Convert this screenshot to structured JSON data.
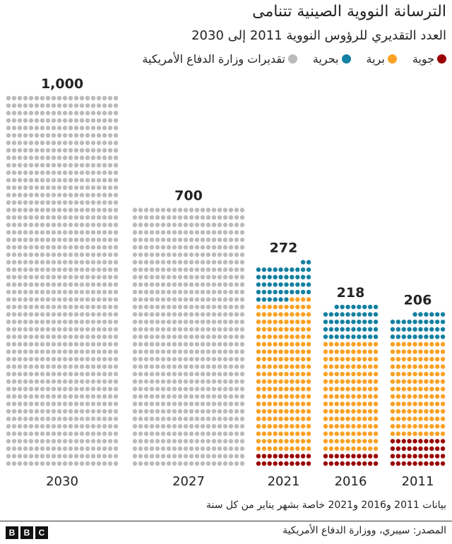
{
  "title": "الترسانة النووية الصينية تتنامى",
  "subtitle": "العدد التقديري للرؤوس النووية 2011 إلى 2030",
  "legend": [
    {
      "label": "جوية",
      "color": "#990000"
    },
    {
      "label": "برية",
      "color": "#fba124"
    },
    {
      "label": "بحرية",
      "color": "#1380a1"
    },
    {
      "label": "تقديرات وزارة الدفاع الأمريكية",
      "color": "#bbbbbb"
    }
  ],
  "chart_data": {
    "type": "waffle",
    "bars": [
      {
        "year": "2030",
        "label": "1,000",
        "total": 1000,
        "segments": [
          {
            "series": "تقديرات وزارة الدفاع الأمريكية",
            "value": 1000
          }
        ]
      },
      {
        "year": "2027",
        "label": "700",
        "total": 700,
        "segments": [
          {
            "series": "تقديرات وزارة الدفاع الأمريكية",
            "value": 700
          }
        ]
      },
      {
        "year": "2021",
        "label": "272",
        "total": 272,
        "segments": [
          {
            "series": "جوية",
            "value": 20
          },
          {
            "series": "برية",
            "value": 204
          },
          {
            "series": "بحرية",
            "value": 48
          }
        ]
      },
      {
        "year": "2016",
        "label": "218",
        "total": 218,
        "segments": [
          {
            "series": "جوية",
            "value": 20
          },
          {
            "series": "برية",
            "value": 150
          },
          {
            "series": "بحرية",
            "value": 48
          }
        ]
      },
      {
        "year": "2011",
        "label": "206",
        "total": 206,
        "segments": [
          {
            "series": "جوية",
            "value": 40
          },
          {
            "series": "برية",
            "value": 130
          },
          {
            "series": "بحرية",
            "value": 36
          }
        ]
      }
    ]
  },
  "note": "بيانات 2011 و2016 و2021 خاصة بشهر يناير من كل سنة",
  "source": "المصدر: سيبري، ووزارة الدفاع الأمريكية",
  "logo": [
    "B",
    "B",
    "C"
  ]
}
